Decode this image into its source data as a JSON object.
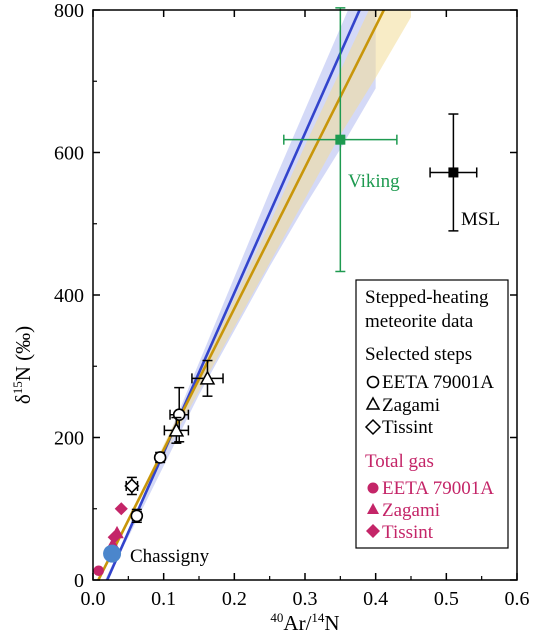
{
  "chart_data": {
    "type": "scatter",
    "xlabel": "40Ar/14N",
    "xlabel_parts": {
      "sup1": "40",
      "mid": "Ar/",
      "sup2": "14",
      "end": "N"
    },
    "ylabel": "δ15N (‰)",
    "ylabel_parts": {
      "pre": "δ",
      "sup": "15",
      "post": "N (‰)"
    },
    "xlim": [
      0,
      0.6
    ],
    "ylim": [
      0,
      800
    ],
    "xticks": [
      0.0,
      0.1,
      0.2,
      0.3,
      0.4,
      0.5,
      0.6
    ],
    "xtick_labels": [
      "0.0",
      "0.1",
      "0.2",
      "0.3",
      "0.4",
      "0.5",
      "0.6"
    ],
    "yticks": [
      0,
      200,
      400,
      600,
      800
    ],
    "ytick_labels": [
      "0",
      "200",
      "400",
      "600",
      "800"
    ],
    "grid": false,
    "colors": {
      "blue_line": "#3344cc",
      "gold_line": "#c8960a",
      "blue_band": "#b7c0f2",
      "gold_band": "#f3dc98",
      "viking": "#1e9a50",
      "total_gas": "#c42568",
      "chassigny": "#4b86cc",
      "msl": "#000000"
    },
    "fits": [
      {
        "color": "blue",
        "intercept": -45,
        "slope": 2240,
        "band": [
          [
            0.01,
            -15,
            -15
          ],
          [
            0.05,
            60,
            70
          ],
          [
            0.1,
            160,
            185
          ],
          [
            0.15,
            260,
            305
          ],
          [
            0.2,
            350,
            425
          ],
          [
            0.25,
            440,
            545
          ],
          [
            0.3,
            525,
            660
          ],
          [
            0.35,
            605,
            775
          ],
          [
            0.4,
            690,
            890
          ]
        ]
      },
      {
        "color": "gold",
        "intercept": -15,
        "slope": 1980,
        "band": [
          [
            0.01,
            5,
            5
          ],
          [
            0.05,
            80,
            85
          ],
          [
            0.1,
            175,
            190
          ],
          [
            0.15,
            265,
            290
          ],
          [
            0.2,
            355,
            395
          ],
          [
            0.25,
            445,
            500
          ],
          [
            0.3,
            535,
            610
          ],
          [
            0.35,
            625,
            715
          ],
          [
            0.4,
            705,
            820
          ],
          [
            0.45,
            790,
            930
          ]
        ]
      }
    ],
    "stepped_heating": [
      {
        "sample": "EETA 79001A",
        "marker": "circle",
        "x": 0.062,
        "y": 90,
        "xerr": 0.006,
        "yerr": 9
      },
      {
        "sample": "EETA 79001A",
        "marker": "circle",
        "x": 0.095,
        "y": 172,
        "xerr": 0.004,
        "yerr": 7
      },
      {
        "sample": "EETA 79001A",
        "marker": "circle",
        "x": 0.122,
        "y": 232,
        "xerr": 0.013,
        "yerr": 38
      },
      {
        "sample": "Zagami",
        "marker": "triangle",
        "x": 0.118,
        "y": 210,
        "xerr": 0.017,
        "yerr": 18
      },
      {
        "sample": "Zagami",
        "marker": "triangle",
        "x": 0.162,
        "y": 283,
        "xerr": 0.022,
        "yerr": 25
      },
      {
        "sample": "Tissint",
        "marker": "diamond",
        "x": 0.055,
        "y": 132,
        "xerr": 0.008,
        "yerr": 12
      }
    ],
    "total_gas": [
      {
        "sample": "EETA 79001A",
        "marker": "circle",
        "x": 0.008,
        "y": 13
      },
      {
        "sample": "Zagami",
        "marker": "triangle",
        "x": 0.028,
        "y": 50
      },
      {
        "sample": "Zagami",
        "marker": "triangle",
        "x": 0.034,
        "y": 66
      },
      {
        "sample": "Tissint",
        "marker": "diamond",
        "x": 0.03,
        "y": 60
      },
      {
        "sample": "Tissint",
        "marker": "diamond",
        "x": 0.04,
        "y": 100
      }
    ],
    "chassigny": {
      "x": 0.027,
      "y": 37
    },
    "viking": {
      "x": 0.35,
      "y": 618,
      "xerr": 0.08,
      "yerr": 185
    },
    "msl": {
      "x": 0.51,
      "y": 572,
      "xerr": 0.033,
      "yerr": 82
    },
    "annotations": {
      "viking": "Viking",
      "msl": "MSL",
      "chassigny": "Chassigny"
    },
    "legend": {
      "placement": "bottom-right",
      "heading1": "Stepped-heating",
      "heading2": "meteorite data",
      "steps_title": "Selected steps",
      "steps": [
        {
          "marker": "circle",
          "label": "EETA 79001A"
        },
        {
          "marker": "triangle",
          "label": "Zagami"
        },
        {
          "marker": "diamond",
          "label": "Tissint"
        }
      ],
      "total_title": "Total gas",
      "total": [
        {
          "marker": "circle",
          "label": "EETA 79001A"
        },
        {
          "marker": "triangle",
          "label": "Zagami"
        },
        {
          "marker": "diamond",
          "label": "Tissint"
        }
      ]
    }
  }
}
